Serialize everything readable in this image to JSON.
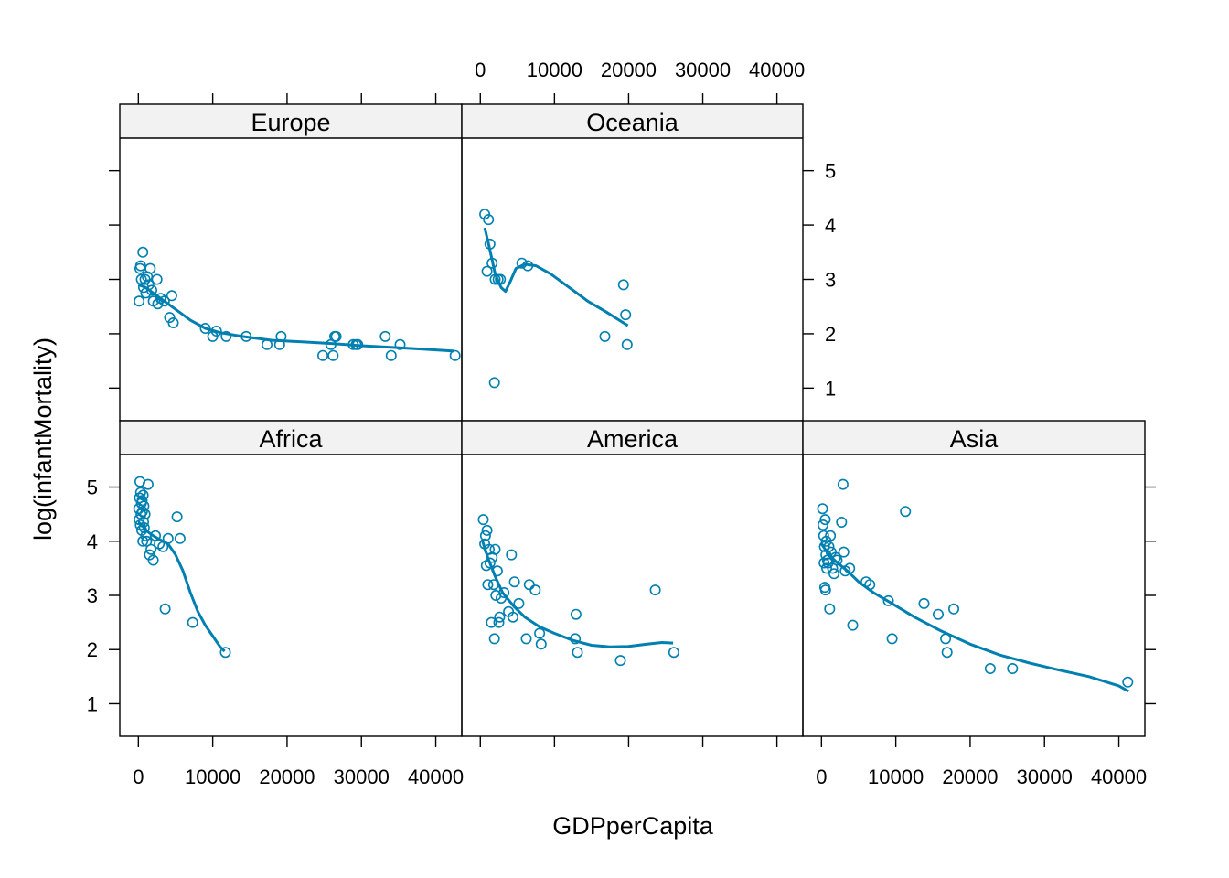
{
  "chart_data": {
    "type": "scatter",
    "layout": "trellis",
    "xlabel": "GDPperCapita",
    "ylabel": "log(infantMortality)",
    "xlim": [
      -2500,
      43500
    ],
    "ylim": [
      0.4,
      5.6
    ],
    "x_ticks": [
      0,
      10000,
      20000,
      30000,
      40000
    ],
    "y_ticks": [
      1,
      2,
      3,
      4,
      5
    ],
    "colors": {
      "point": "#0080b0",
      "strip_bg": "#f2f2f2",
      "frame": "#000000"
    },
    "panels": [
      {
        "name": "Europe",
        "points": [
          [
            100,
            2.6
          ],
          [
            200,
            3.2
          ],
          [
            300,
            3.25
          ],
          [
            400,
            3.0
          ],
          [
            600,
            3.5
          ],
          [
            700,
            2.85
          ],
          [
            900,
            3.0
          ],
          [
            1000,
            2.75
          ],
          [
            1200,
            3.05
          ],
          [
            1400,
            2.9
          ],
          [
            1600,
            3.2
          ],
          [
            1800,
            2.8
          ],
          [
            2000,
            2.6
          ],
          [
            2500,
            3.0
          ],
          [
            2600,
            2.55
          ],
          [
            3000,
            2.65
          ],
          [
            3500,
            2.6
          ],
          [
            4200,
            2.3
          ],
          [
            4500,
            2.7
          ],
          [
            4700,
            2.2
          ],
          [
            9000,
            2.1
          ],
          [
            10000,
            1.95
          ],
          [
            10500,
            2.05
          ],
          [
            11800,
            1.95
          ],
          [
            14500,
            1.95
          ],
          [
            17300,
            1.8
          ],
          [
            19000,
            1.8
          ],
          [
            19200,
            1.95
          ],
          [
            24800,
            1.6
          ],
          [
            25900,
            1.8
          ],
          [
            26200,
            1.6
          ],
          [
            26400,
            1.95
          ],
          [
            26600,
            1.95
          ],
          [
            28900,
            1.8
          ],
          [
            29300,
            1.8
          ],
          [
            29500,
            1.8
          ],
          [
            33200,
            1.95
          ],
          [
            34000,
            1.6
          ],
          [
            35200,
            1.8
          ],
          [
            42600,
            1.6
          ]
        ],
        "curve": [
          [
            0,
            2.9
          ],
          [
            1000,
            2.85
          ],
          [
            2000,
            2.75
          ],
          [
            3500,
            2.6
          ],
          [
            5000,
            2.45
          ],
          [
            7000,
            2.25
          ],
          [
            9000,
            2.1
          ],
          [
            11000,
            2.02
          ],
          [
            14000,
            1.95
          ],
          [
            18000,
            1.88
          ],
          [
            22000,
            1.85
          ],
          [
            26000,
            1.82
          ],
          [
            30000,
            1.78
          ],
          [
            34000,
            1.75
          ],
          [
            38000,
            1.72
          ],
          [
            42500,
            1.68
          ]
        ]
      },
      {
        "name": "Oceania",
        "points": [
          [
            600,
            4.2
          ],
          [
            900,
            3.15
          ],
          [
            1100,
            4.1
          ],
          [
            1300,
            3.65
          ],
          [
            1600,
            3.3
          ],
          [
            1900,
            1.1
          ],
          [
            2000,
            3.0
          ],
          [
            2400,
            3.0
          ],
          [
            2700,
            3.0
          ],
          [
            5600,
            3.3
          ],
          [
            6400,
            3.25
          ],
          [
            16800,
            1.95
          ],
          [
            19300,
            2.9
          ],
          [
            19600,
            2.35
          ],
          [
            19800,
            1.8
          ]
        ],
        "curve": [
          [
            600,
            3.95
          ],
          [
            1200,
            3.6
          ],
          [
            2000,
            3.1
          ],
          [
            2800,
            2.85
          ],
          [
            3400,
            2.78
          ],
          [
            4000,
            2.95
          ],
          [
            4800,
            3.2
          ],
          [
            6000,
            3.28
          ],
          [
            7500,
            3.25
          ],
          [
            9500,
            3.1
          ],
          [
            12000,
            2.85
          ],
          [
            14500,
            2.6
          ],
          [
            17000,
            2.4
          ],
          [
            19900,
            2.15
          ]
        ]
      },
      {
        "name": "Africa",
        "points": [
          [
            50,
            4.6
          ],
          [
            100,
            4.4
          ],
          [
            150,
            4.8
          ],
          [
            200,
            5.1
          ],
          [
            250,
            4.3
          ],
          [
            300,
            4.9
          ],
          [
            350,
            4.5
          ],
          [
            400,
            4.7
          ],
          [
            450,
            4.2
          ],
          [
            500,
            4.75
          ],
          [
            550,
            4.55
          ],
          [
            600,
            4.0
          ],
          [
            650,
            4.85
          ],
          [
            700,
            4.35
          ],
          [
            750,
            4.65
          ],
          [
            800,
            4.25
          ],
          [
            900,
            4.5
          ],
          [
            1000,
            4.1
          ],
          [
            1100,
            4.0
          ],
          [
            1300,
            5.05
          ],
          [
            1500,
            3.75
          ],
          [
            1700,
            3.85
          ],
          [
            2000,
            3.65
          ],
          [
            2300,
            4.1
          ],
          [
            2800,
            3.95
          ],
          [
            3300,
            3.9
          ],
          [
            3600,
            2.75
          ],
          [
            4000,
            4.05
          ],
          [
            5200,
            4.45
          ],
          [
            5600,
            4.05
          ],
          [
            7300,
            2.5
          ],
          [
            11700,
            1.95
          ]
        ],
        "curve": [
          [
            0,
            4.35
          ],
          [
            500,
            4.3
          ],
          [
            1000,
            4.2
          ],
          [
            2000,
            4.1
          ],
          [
            3000,
            4.02
          ],
          [
            4000,
            3.95
          ],
          [
            5000,
            3.75
          ],
          [
            6000,
            3.45
          ],
          [
            7000,
            3.05
          ],
          [
            8000,
            2.7
          ],
          [
            9000,
            2.45
          ],
          [
            10000,
            2.25
          ],
          [
            11000,
            2.05
          ],
          [
            11600,
            1.97
          ]
        ]
      },
      {
        "name": "America",
        "points": [
          [
            400,
            4.4
          ],
          [
            600,
            3.95
          ],
          [
            700,
            4.1
          ],
          [
            800,
            3.55
          ],
          [
            900,
            4.2
          ],
          [
            1000,
            3.2
          ],
          [
            1200,
            3.85
          ],
          [
            1300,
            3.6
          ],
          [
            1500,
            2.5
          ],
          [
            1600,
            3.7
          ],
          [
            1800,
            3.2
          ],
          [
            1900,
            2.2
          ],
          [
            2000,
            3.85
          ],
          [
            2100,
            3.0
          ],
          [
            2300,
            3.45
          ],
          [
            2500,
            2.5
          ],
          [
            2600,
            2.6
          ],
          [
            2800,
            2.95
          ],
          [
            3200,
            3.05
          ],
          [
            3800,
            2.7
          ],
          [
            4200,
            3.75
          ],
          [
            4400,
            2.6
          ],
          [
            4600,
            3.25
          ],
          [
            5200,
            2.85
          ],
          [
            6200,
            2.2
          ],
          [
            6600,
            3.2
          ],
          [
            7400,
            3.1
          ],
          [
            8000,
            2.3
          ],
          [
            8200,
            2.1
          ],
          [
            12800,
            2.2
          ],
          [
            12900,
            2.65
          ],
          [
            13100,
            1.95
          ],
          [
            18900,
            1.8
          ],
          [
            23600,
            3.1
          ],
          [
            26100,
            1.95
          ]
        ],
        "curve": [
          [
            300,
            4.0
          ],
          [
            1000,
            3.7
          ],
          [
            2000,
            3.35
          ],
          [
            3000,
            3.05
          ],
          [
            4500,
            2.8
          ],
          [
            6000,
            2.6
          ],
          [
            8000,
            2.42
          ],
          [
            10000,
            2.3
          ],
          [
            12500,
            2.17
          ],
          [
            15000,
            2.08
          ],
          [
            17500,
            2.05
          ],
          [
            20000,
            2.06
          ],
          [
            22500,
            2.1
          ],
          [
            24500,
            2.13
          ],
          [
            26000,
            2.12
          ]
        ]
      },
      {
        "name": "Asia",
        "points": [
          [
            150,
            4.6
          ],
          [
            200,
            4.3
          ],
          [
            300,
            4.1
          ],
          [
            350,
            3.6
          ],
          [
            400,
            3.9
          ],
          [
            450,
            3.15
          ],
          [
            500,
            4.4
          ],
          [
            550,
            3.1
          ],
          [
            600,
            3.75
          ],
          [
            650,
            4.0
          ],
          [
            700,
            3.5
          ],
          [
            800,
            3.65
          ],
          [
            900,
            3.6
          ],
          [
            1000,
            3.9
          ],
          [
            1100,
            2.75
          ],
          [
            1200,
            4.1
          ],
          [
            1300,
            3.8
          ],
          [
            1500,
            3.5
          ],
          [
            1700,
            3.4
          ],
          [
            1900,
            3.7
          ],
          [
            2100,
            3.65
          ],
          [
            2700,
            4.35
          ],
          [
            2900,
            5.05
          ],
          [
            3000,
            3.8
          ],
          [
            3200,
            3.45
          ],
          [
            3800,
            3.5
          ],
          [
            4200,
            2.45
          ],
          [
            6000,
            3.25
          ],
          [
            6500,
            3.2
          ],
          [
            9000,
            2.9
          ],
          [
            9500,
            2.2
          ],
          [
            11300,
            4.55
          ],
          [
            13800,
            2.85
          ],
          [
            15700,
            2.65
          ],
          [
            16700,
            2.2
          ],
          [
            16900,
            1.95
          ],
          [
            17800,
            2.75
          ],
          [
            22700,
            1.65
          ],
          [
            25700,
            1.65
          ],
          [
            41200,
            1.4
          ]
        ],
        "curve": [
          [
            0,
            3.95
          ],
          [
            500,
            3.85
          ],
          [
            1000,
            3.75
          ],
          [
            2000,
            3.62
          ],
          [
            3500,
            3.45
          ],
          [
            5000,
            3.25
          ],
          [
            7000,
            3.05
          ],
          [
            9500,
            2.85
          ],
          [
            12500,
            2.6
          ],
          [
            16000,
            2.35
          ],
          [
            20000,
            2.1
          ],
          [
            24000,
            1.9
          ],
          [
            28000,
            1.75
          ],
          [
            32000,
            1.62
          ],
          [
            36000,
            1.5
          ],
          [
            40000,
            1.33
          ],
          [
            41300,
            1.23
          ]
        ]
      }
    ]
  }
}
